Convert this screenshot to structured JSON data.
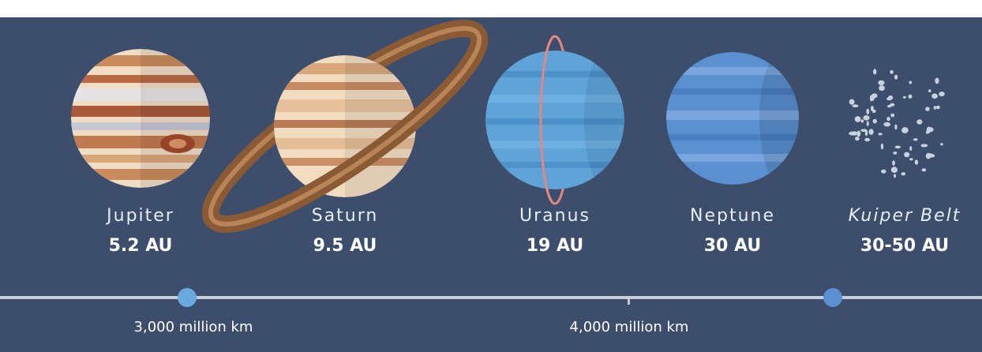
{
  "planets": [
    {
      "name": "Jupiter",
      "distance": "5.2 AU"
    },
    {
      "name": "Saturn",
      "distance": "9.5 AU"
    },
    {
      "name": "Uranus",
      "distance": "19 AU"
    },
    {
      "name": "Neptune",
      "distance": "30 AU"
    },
    {
      "name": "Kuiper Belt",
      "distance": "30-50 AU"
    }
  ],
  "scale": [
    {
      "label": "3,000 million km"
    },
    {
      "label": "4,000 million km"
    }
  ]
}
